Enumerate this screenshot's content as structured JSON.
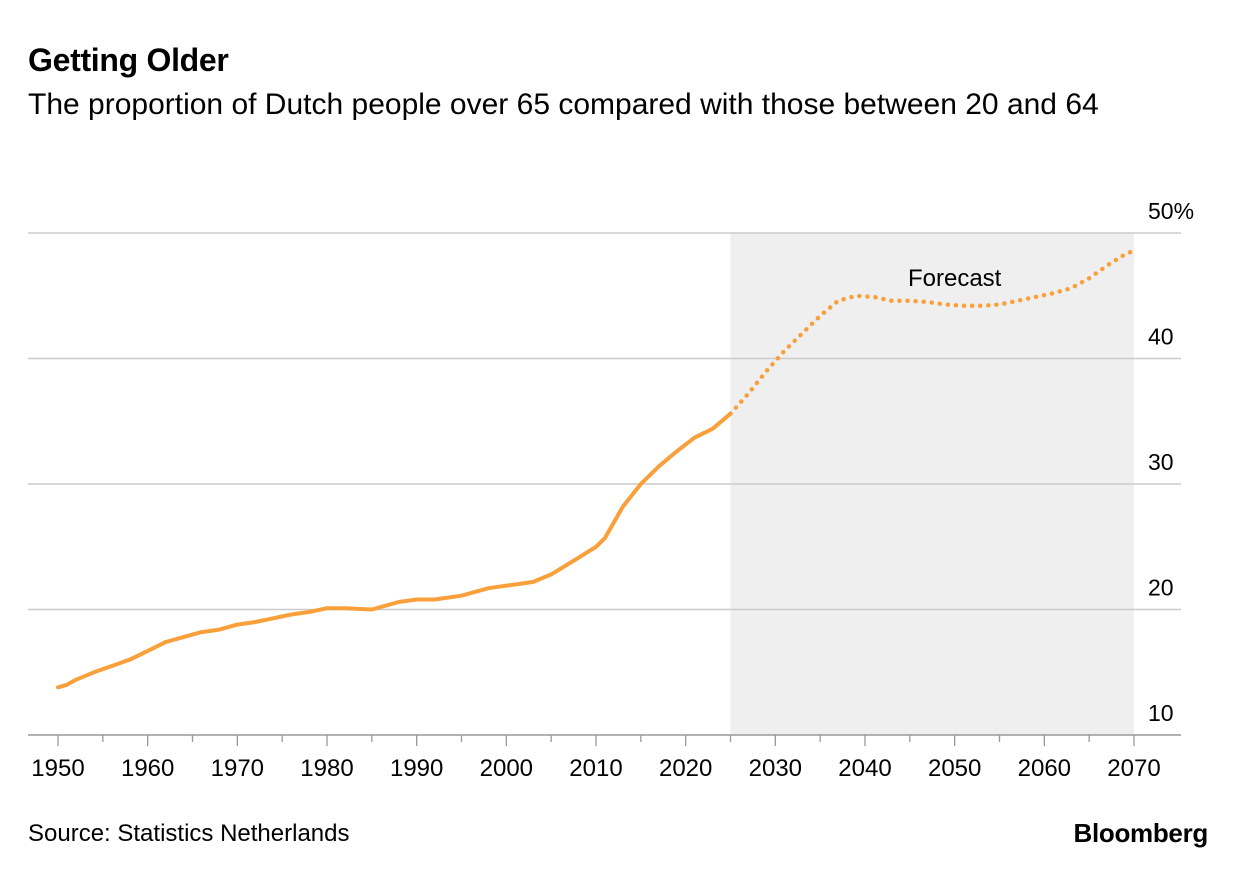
{
  "chart_data": {
    "type": "line",
    "title": "Getting Older",
    "subtitle": "The proportion of Dutch people over 65 compared with those between 20 and 64",
    "source": "Source: Statistics Netherlands",
    "brand": "Bloomberg",
    "annotation": "Forecast",
    "forecast_start": 2025,
    "xlim": [
      1950,
      2070
    ],
    "ylim": [
      10,
      50
    ],
    "x_ticks": [
      1950,
      1960,
      1970,
      1980,
      1990,
      2000,
      2010,
      2020,
      2030,
      2040,
      2050,
      2060,
      2070
    ],
    "y_ticks": [
      10,
      20,
      30,
      40,
      50
    ],
    "y_tick_labels": [
      "10",
      "20",
      "30",
      "40",
      "50%"
    ],
    "grid": true,
    "line_color": "#f9a03a",
    "forecast_bg_color": "#efefef",
    "series": [
      {
        "kind": "actual",
        "x": [
          1950,
          1951,
          1952,
          1954,
          1956,
          1958,
          1960,
          1962,
          1964,
          1966,
          1968,
          1970,
          1972,
          1974,
          1976,
          1978,
          1980,
          1982,
          1985,
          1988,
          1990,
          1992,
          1995,
          1998,
          2000,
          2003,
          2005,
          2008,
          2010,
          2011,
          2013,
          2015,
          2017,
          2019,
          2021,
          2023,
          2025
        ],
        "y": [
          13.8,
          14.0,
          14.4,
          15.0,
          15.5,
          16.0,
          16.7,
          17.4,
          17.8,
          18.2,
          18.4,
          18.8,
          19.0,
          19.3,
          19.6,
          19.8,
          20.1,
          20.1,
          20.0,
          20.6,
          20.8,
          20.8,
          21.1,
          21.7,
          21.9,
          22.2,
          22.8,
          24.1,
          25.0,
          25.7,
          28.2,
          30.0,
          31.4,
          32.6,
          33.7,
          34.4,
          35.6
        ]
      },
      {
        "kind": "forecast",
        "x": [
          2025,
          2027,
          2029,
          2031,
          2033,
          2035,
          2037,
          2039,
          2041,
          2043,
          2045,
          2047,
          2049,
          2051,
          2053,
          2055,
          2057,
          2059,
          2061,
          2063,
          2065,
          2067,
          2069,
          2070
        ],
        "y": [
          35.6,
          37.2,
          39.0,
          40.6,
          42.0,
          43.4,
          44.6,
          45.0,
          44.9,
          44.6,
          44.6,
          44.5,
          44.3,
          44.2,
          44.2,
          44.3,
          44.6,
          44.9,
          45.2,
          45.6,
          46.4,
          47.4,
          48.3,
          48.6
        ]
      }
    ]
  }
}
